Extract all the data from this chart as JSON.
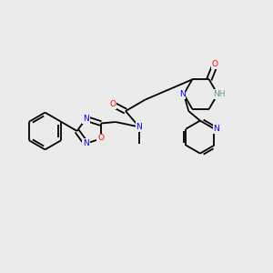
{
  "background_color": "#ebebeb",
  "bond_color": "#000000",
  "atom_colors": {
    "N": "#0000ff",
    "O": "#ff0000",
    "NH": "#5f9ea0",
    "C": "#000000"
  },
  "figsize": [
    3.0,
    3.0
  ],
  "dpi": 100,
  "bond_lw": 1.3,
  "font_size": 6.5
}
